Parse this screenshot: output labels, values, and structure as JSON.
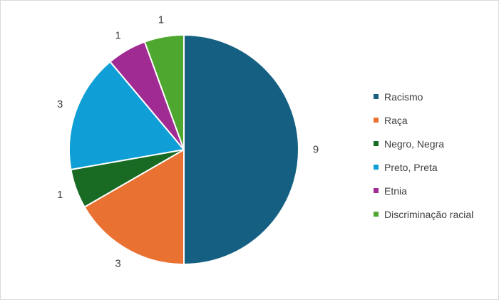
{
  "chart_data": {
    "type": "pie",
    "categories": [
      "Racismo",
      "Raça",
      "Negro, Negra",
      "Preto, Preta",
      "Etnia",
      "Discriminação racial"
    ],
    "values": [
      9,
      3,
      1,
      3,
      1,
      1
    ],
    "colors": [
      "#156082",
      "#E97132",
      "#196B24",
      "#0F9ED5",
      "#A02B93",
      "#4EA72E"
    ],
    "title": "",
    "legend": "right",
    "data_labels": [
      "9",
      "3",
      "1",
      "3",
      "1",
      "1"
    ]
  }
}
